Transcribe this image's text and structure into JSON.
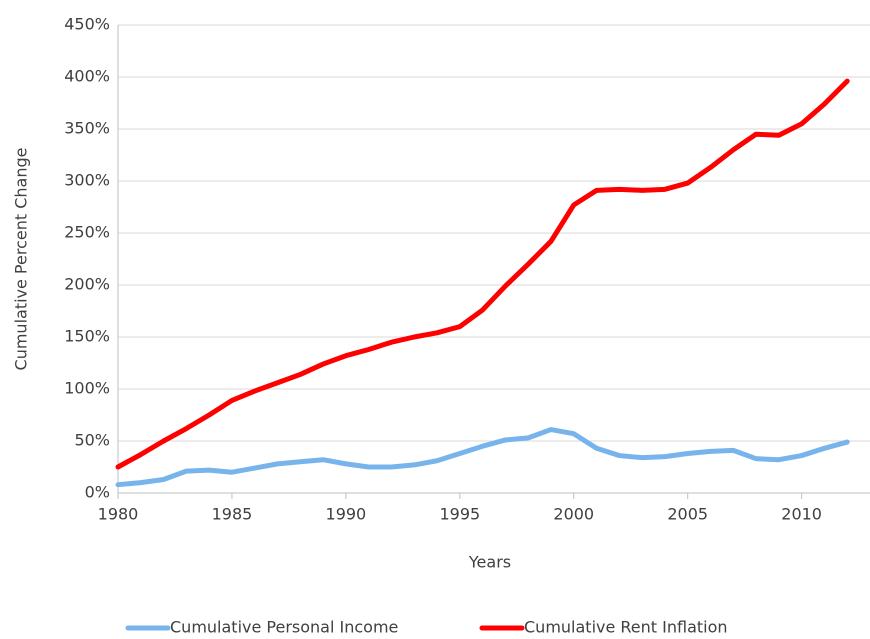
{
  "chart_data": {
    "type": "line",
    "x_label": "Years",
    "y_label": "Cumulative Percent Change",
    "x": [
      1980,
      1981,
      1982,
      1983,
      1984,
      1985,
      1986,
      1987,
      1988,
      1989,
      1990,
      1991,
      1992,
      1993,
      1994,
      1995,
      1996,
      1997,
      1998,
      1999,
      2000,
      2001,
      2002,
      2003,
      2004,
      2005,
      2006,
      2007,
      2008,
      2009,
      2010,
      2011,
      2012
    ],
    "series": [
      {
        "name": "Cumulative Personal Income",
        "color": "#78b4ec",
        "values": [
          8,
          10,
          13,
          21,
          22,
          20,
          24,
          28,
          30,
          32,
          28,
          25,
          25,
          27,
          31,
          38,
          45,
          51,
          53,
          61,
          57,
          43,
          36,
          34,
          35,
          38,
          40,
          41,
          33,
          32,
          36,
          43,
          49
        ]
      },
      {
        "name": "Cumulative Rent Inflation",
        "color": "#ff0000",
        "values": [
          25,
          37,
          50,
          62,
          75,
          89,
          98,
          106,
          114,
          124,
          132,
          138,
          145,
          150,
          154,
          160,
          176,
          199,
          220,
          242,
          277,
          291,
          292,
          291,
          292,
          298,
          313,
          330,
          345,
          344,
          355,
          374,
          396
        ]
      }
    ],
    "xlim": [
      1980,
      2013
    ],
    "xticks": [
      1980,
      1985,
      1990,
      1995,
      2000,
      2005,
      2010
    ],
    "ylim": [
      0,
      450
    ],
    "yticks": [
      {
        "value": 0,
        "label": "0%"
      },
      {
        "value": 50,
        "label": "50%"
      },
      {
        "value": 100,
        "label": "100%"
      },
      {
        "value": 150,
        "label": "150%"
      },
      {
        "value": 200,
        "label": "200%"
      },
      {
        "value": 250,
        "label": "250%"
      },
      {
        "value": 300,
        "label": "300%"
      },
      {
        "value": 350,
        "label": "350%"
      },
      {
        "value": 400,
        "label": "400%"
      },
      {
        "value": 450,
        "label": "450%"
      }
    ],
    "grid": true,
    "legend": "bottom"
  }
}
